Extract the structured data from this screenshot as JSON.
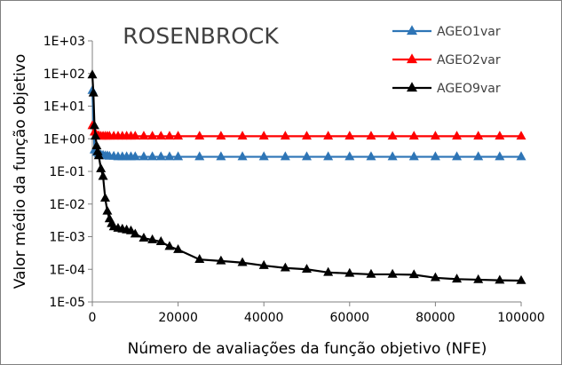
{
  "chart_data": {
    "type": "line",
    "title": "ROSENBROCK",
    "xlabel": "Número de avaliações da função objetivo (NFE)",
    "ylabel": "Valor médio da função objetivo",
    "x_scale": "linear",
    "y_scale": "log",
    "xlim": [
      0,
      100000
    ],
    "ylim": [
      1e-05,
      1000
    ],
    "x_ticks": [
      "0",
      "20000",
      "40000",
      "60000",
      "80000",
      "100000"
    ],
    "y_ticks": [
      "1E-05",
      "1E-04",
      "1E-03",
      "1E-02",
      "1E-01",
      "1E+00",
      "1E+01",
      "1E+02",
      "1E+03"
    ],
    "legend_position": "top-right",
    "grid": false,
    "series": [
      {
        "name": "AGEO1var",
        "color": "#2E75B6",
        "marker": "triangle",
        "x": [
          0,
          500,
          1000,
          1500,
          2000,
          2500,
          3000,
          3500,
          4000,
          5000,
          6000,
          7000,
          8000,
          9000,
          10000,
          12000,
          14000,
          16000,
          18000,
          20000,
          25000,
          30000,
          35000,
          40000,
          45000,
          50000,
          55000,
          60000,
          65000,
          70000,
          75000,
          80000,
          85000,
          90000,
          95000,
          100000
        ],
        "y": [
          30,
          0.45,
          0.38,
          0.34,
          0.32,
          0.31,
          0.3,
          0.3,
          0.29,
          0.29,
          0.28,
          0.28,
          0.28,
          0.28,
          0.28,
          0.28,
          0.28,
          0.28,
          0.28,
          0.28,
          0.28,
          0.28,
          0.28,
          0.28,
          0.28,
          0.28,
          0.28,
          0.28,
          0.28,
          0.28,
          0.28,
          0.28,
          0.28,
          0.28,
          0.28,
          0.28
        ]
      },
      {
        "name": "AGEO2var",
        "color": "#FF0000",
        "marker": "triangle",
        "x": [
          0,
          500,
          1000,
          1500,
          2000,
          2500,
          3000,
          3500,
          4000,
          5000,
          6000,
          7000,
          8000,
          9000,
          10000,
          12000,
          14000,
          16000,
          18000,
          20000,
          25000,
          30000,
          35000,
          40000,
          45000,
          50000,
          55000,
          60000,
          65000,
          70000,
          75000,
          80000,
          85000,
          90000,
          95000,
          100000
        ],
        "y": [
          2.5,
          1.6,
          1.3,
          1.25,
          1.2,
          1.2,
          1.2,
          1.2,
          1.2,
          1.2,
          1.2,
          1.2,
          1.2,
          1.2,
          1.2,
          1.2,
          1.2,
          1.2,
          1.2,
          1.2,
          1.2,
          1.2,
          1.2,
          1.2,
          1.2,
          1.2,
          1.2,
          1.2,
          1.2,
          1.2,
          1.2,
          1.2,
          1.2,
          1.2,
          1.2,
          1.2
        ]
      },
      {
        "name": "AGEO9var",
        "color": "#000000",
        "marker": "triangle",
        "x": [
          0,
          250,
          500,
          750,
          1000,
          1250,
          1500,
          2000,
          2500,
          3000,
          3500,
          4000,
          4500,
          5000,
          6000,
          7000,
          8000,
          9000,
          10000,
          12000,
          14000,
          16000,
          18000,
          20000,
          25000,
          30000,
          35000,
          40000,
          45000,
          50000,
          55000,
          60000,
          65000,
          70000,
          75000,
          80000,
          85000,
          90000,
          95000,
          100000
        ],
        "y": [
          90,
          25,
          2.5,
          1.2,
          0.6,
          0.4,
          0.3,
          0.12,
          0.07,
          0.015,
          0.006,
          0.0035,
          0.0025,
          0.002,
          0.0018,
          0.0017,
          0.0016,
          0.0015,
          0.0012,
          0.0009,
          0.0008,
          0.0007,
          0.0005,
          0.0004,
          0.0002,
          0.00018,
          0.00016,
          0.00013,
          0.00011,
          0.0001,
          8e-05,
          7.5e-05,
          7e-05,
          7e-05,
          6.8e-05,
          5.5e-05,
          5e-05,
          4.8e-05,
          4.6e-05,
          4.5e-05
        ]
      }
    ]
  }
}
